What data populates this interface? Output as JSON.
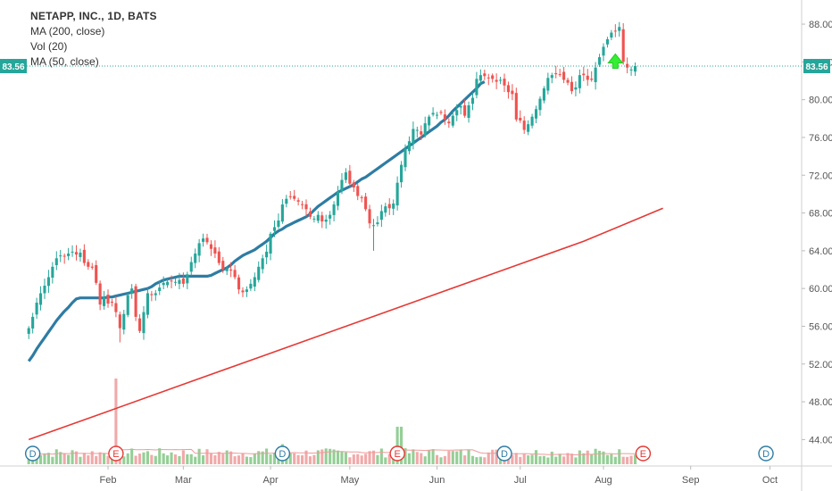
{
  "legend": {
    "title": "NETAPP, INC., 1D, BATS",
    "ma200": "MA (200, close)",
    "vol": "Vol (20)",
    "ma50": "MA (50, close)"
  },
  "price_badge": "83.56",
  "chart_data": {
    "type": "candlestick",
    "symbol_title": "NETAPP, INC., 1D, BATS",
    "y_ticks": [
      "88.00",
      "84.00",
      "80.00",
      "76.00",
      "72.00",
      "68.00",
      "64.00",
      "60.00",
      "56.00",
      "52.00",
      "48.00",
      "44.00"
    ],
    "y_tick_values": [
      88,
      84,
      80,
      76,
      72,
      68,
      64,
      60,
      56,
      52,
      48,
      44
    ],
    "ylim": [
      41.2,
      89.8
    ],
    "last_price": 83.56,
    "x_ticks": [
      {
        "label": "Feb",
        "idx": 20
      },
      {
        "label": "Mar",
        "idx": 39
      },
      {
        "label": "Apr",
        "idx": 61
      },
      {
        "label": "May",
        "idx": 81
      },
      {
        "label": "Jun",
        "idx": 103
      },
      {
        "label": "Jul",
        "idx": 124
      },
      {
        "label": "Aug",
        "idx": 145
      },
      {
        "label": "Sep",
        "idx": 167
      },
      {
        "label": "Oct",
        "idx": 187
      }
    ],
    "x_range": [
      -0.5,
      195
    ],
    "close": [
      55.8,
      57.0,
      58.5,
      59.5,
      60.3,
      61.2,
      62.3,
      63.2,
      63.5,
      63.4,
      63.7,
      63.9,
      63.6,
      63.8,
      62.7,
      62.3,
      62.2,
      60.6,
      58.3,
      59.1,
      58.4,
      58.5,
      57.5,
      55.8,
      57.3,
      59.3,
      60.0,
      57.0,
      55.5,
      57.5,
      59.5,
      59.3,
      59.5,
      60.1,
      60.6,
      60.7,
      60.8,
      60.7,
      60.9,
      60.5,
      61.5,
      62.8,
      63.7,
      64.8,
      65.3,
      64.9,
      64.2,
      63.7,
      62.7,
      62.0,
      62.1,
      61.9,
      61.2,
      59.9,
      59.6,
      59.9,
      60.5,
      61.2,
      62.3,
      63.2,
      63.9,
      65.8,
      66.5,
      67.2,
      68.9,
      69.5,
      69.7,
      69.5,
      69.2,
      68.9,
      68.4,
      67.6,
      67.4,
      67.8,
      67.1,
      67.3,
      67.8,
      68.9,
      70.3,
      71.5,
      72.3,
      71.1,
      70.7,
      69.8,
      69.6,
      68.4,
      66.9,
      66.7,
      67.0,
      68.2,
      68.7,
      68.5,
      69.0,
      71.2,
      73.1,
      74.8,
      75.6,
      76.9,
      76.8,
      76.3,
      77.5,
      78.2,
      78.6,
      78.4,
      78.6,
      77.9,
      77.5,
      78.3,
      78.9,
      79.3,
      78.3,
      79.4,
      80.2,
      82.2,
      82.6,
      82.5,
      82.3,
      82.2,
      81.9,
      82.1,
      81.5,
      80.8,
      80.6,
      77.9,
      77.8,
      76.8,
      77.4,
      78.2,
      79.0,
      80.1,
      81.2,
      82.3,
      82.6,
      82.7,
      82.7,
      82.1,
      81.8,
      80.9,
      81.3,
      82.6,
      82.6,
      82.1,
      82.1,
      83.4,
      84.5,
      85.6,
      86.4,
      87.1,
      87.3,
      87.7,
      84.0,
      83.4,
      83.2,
      83.56
    ],
    "series": [
      {
        "name": "MA (50, close)",
        "color": "#2e7ca3",
        "values": [
          52.3,
          52.9,
          53.6,
          54.2,
          54.8,
          55.4,
          56.0,
          56.6,
          57.1,
          57.6,
          58.0,
          58.5,
          58.9,
          59.0,
          59.0,
          59.0,
          59.0,
          59.0,
          59.0,
          59.0,
          59.1,
          59.1,
          59.2,
          59.3,
          59.4,
          59.5,
          59.6,
          59.7,
          59.8,
          59.9,
          60.0,
          60.2,
          60.5,
          60.7,
          60.9,
          61.0,
          61.1,
          61.2,
          61.3,
          61.3,
          61.3,
          61.3,
          61.3,
          61.3,
          61.3,
          61.3,
          61.4,
          61.6,
          61.8,
          62.0,
          62.2,
          62.5,
          62.9,
          63.2,
          63.5,
          63.7,
          63.9,
          64.1,
          64.4,
          64.7,
          65.0,
          65.4,
          65.8,
          66.1,
          66.3,
          66.6,
          66.8,
          67.0,
          67.2,
          67.4,
          67.6,
          67.9,
          68.3,
          68.7,
          69.0,
          69.3,
          69.6,
          69.9,
          70.2,
          70.4,
          70.6,
          70.8,
          71.0,
          71.3,
          71.6,
          71.8,
          72.1,
          72.4,
          72.7,
          73.0,
          73.3,
          73.6,
          73.9,
          74.2,
          74.5,
          74.8,
          75.1,
          75.4,
          75.7,
          76.0,
          76.3,
          76.6,
          76.9,
          77.2,
          77.6,
          77.9,
          78.3,
          78.8,
          79.2,
          79.6,
          80.0,
          80.4,
          80.8,
          81.2,
          81.7,
          81.9
        ]
      },
      {
        "name": "MA (200, close)",
        "color": "#e53935",
        "values": [
          44.0,
          47.0,
          50.0,
          53.0,
          56.0,
          59.0,
          62.0,
          65.0,
          68.5
        ]
      },
      {
        "name": "Vol (20)",
        "color": "#ef9a9a"
      }
    ],
    "ma50_start_idx": 0,
    "ma200_start_idx": 0,
    "ma200_idx": [
      0,
      20,
      40,
      60,
      80,
      100,
      120,
      140,
      160
    ],
    "volume_up_color": "#81c784",
    "volume_down_color": "#ef9a9a",
    "candle_up_color": "#26a69a",
    "candle_down_color": "#ef5350",
    "events": [
      {
        "type": "D",
        "idx": 1
      },
      {
        "type": "E",
        "idx": 22
      },
      {
        "type": "D",
        "idx": 64
      },
      {
        "type": "E",
        "idx": 93
      },
      {
        "type": "D",
        "idx": 120
      },
      {
        "type": "E",
        "idx": 155
      },
      {
        "type": "D",
        "idx": 186
      }
    ],
    "arrows_idx": [
      148,
      158,
      169
    ]
  }
}
